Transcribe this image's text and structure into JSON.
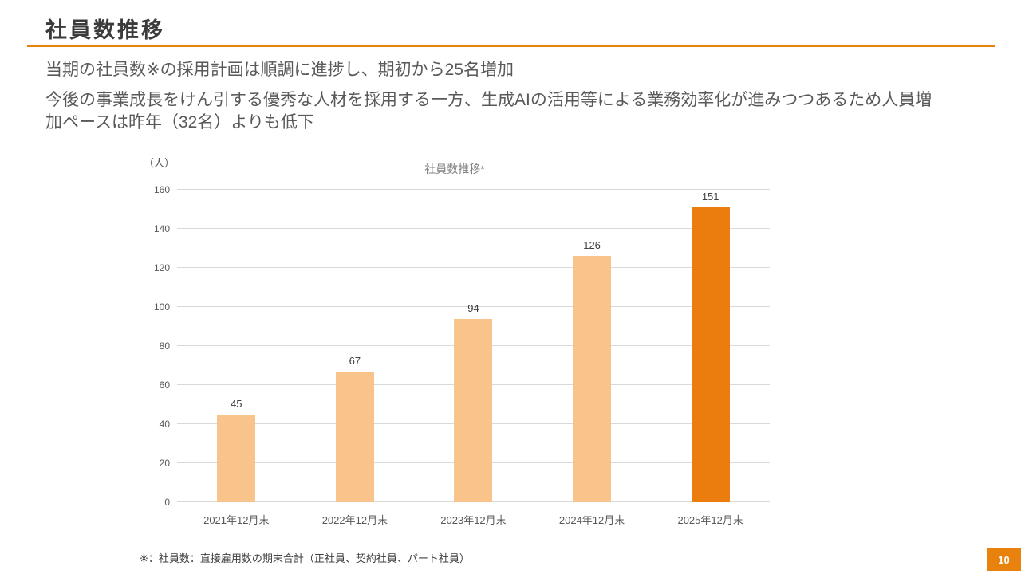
{
  "header": {
    "title": "社員数推移"
  },
  "body": {
    "line1": "当期の社員数※の採用計画は順調に進捗し、期初から25名増加",
    "line2": "今後の事業成長をけん引する優秀な人材を採用する一方、生成AIの活用等による業務効率化が進みつつあるため人員増加ペースは昨年（32名）よりも低下"
  },
  "chart_data": {
    "type": "bar",
    "title": "社員数推移*",
    "unit_label": "（人）",
    "categories": [
      "2021年12月末",
      "2022年12月末",
      "2023年12月末",
      "2024年12月末",
      "2025年12月末"
    ],
    "values": [
      45,
      67,
      94,
      126,
      151
    ],
    "ylim": [
      0,
      160
    ],
    "ytick_step": 20,
    "grid": true,
    "legend": "none",
    "highlight_index": 4
  },
  "footnote": "※：社員数：直接雇用数の期末合計（正社員、契約社員、パート社員）",
  "page_number": "10",
  "colors": {
    "accent": "#E8820C",
    "bar_light": "#F9C38C",
    "bar_highlight": "#EB7D0E",
    "grid": "#D9D9D9",
    "title_text": "#3B3B3B",
    "body_text": "#595959"
  }
}
